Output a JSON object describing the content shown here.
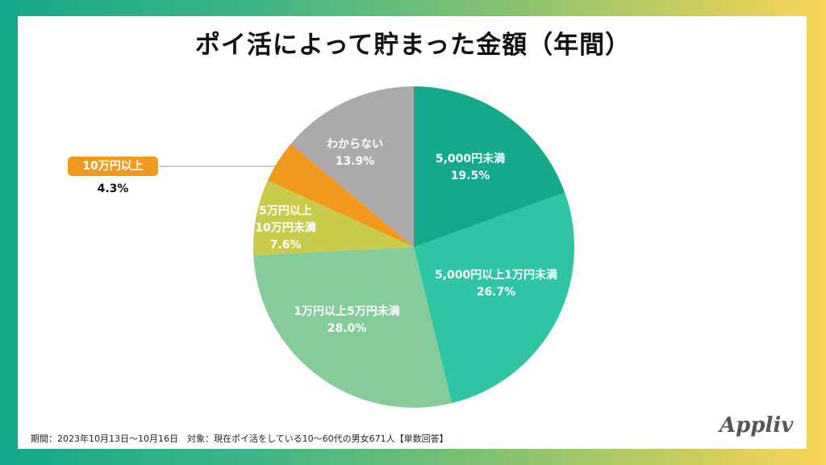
{
  "title": "ポイ活によって貯まった金額（年間）",
  "footnote": "期間：2023年10月13日〜10月16日　対象：現在ポイ活をしている10〜60代の男女671人【単数回答】",
  "logo": "Appliv",
  "chart_data": {
    "type": "pie",
    "title": "ポイ活によって貯まった金額（年間）",
    "start_angle": "12 o'clock",
    "direction": "clockwise",
    "slices": [
      {
        "label": "5,000円未満",
        "value": 19.5,
        "value_label": "19.5%",
        "color": "#14a98a"
      },
      {
        "label": "5,000円以上1万円未満",
        "value": 26.7,
        "value_label": "26.7%",
        "color": "#2ec4a4"
      },
      {
        "label": "1万円以上5万円未満",
        "value": 28.0,
        "value_label": "28.0%",
        "color": "#86cc9b"
      },
      {
        "label": "5万円以上10万円未満",
        "label_lines": [
          "5万円以上",
          "10万円未満"
        ],
        "value": 7.6,
        "value_label": "7.6%",
        "color": "#c9cc4a"
      },
      {
        "label": "10万円以上",
        "value": 4.3,
        "value_label": "4.3%",
        "color": "#f39a1c",
        "callout": true
      },
      {
        "label": "わからない",
        "value": 13.9,
        "value_label": "13.9%",
        "color": "#aaaaaa"
      }
    ]
  }
}
